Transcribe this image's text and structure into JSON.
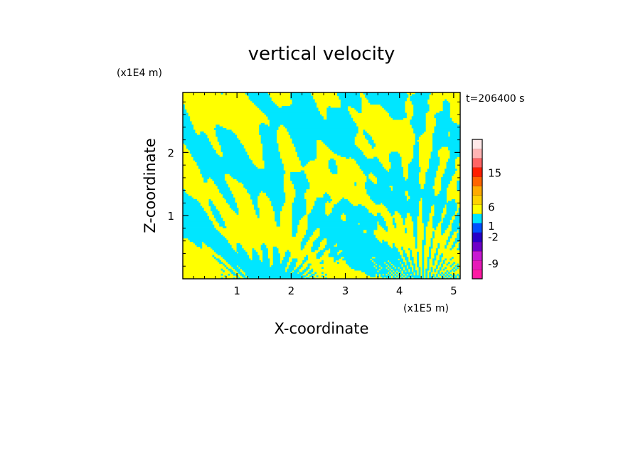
{
  "chart_data": {
    "type": "heatmap",
    "title": "vertical velocity",
    "xlabel": "X-coordinate",
    "ylabel": "Z-coordinate",
    "x_unit": "(x1E5 m)",
    "y_unit": "(x1E4 m)",
    "time_label": "t=206400  s",
    "xlim": [
      0,
      5.12
    ],
    "ylim": [
      0,
      2.95
    ],
    "x_ticks": [
      "1",
      "2",
      "3",
      "4",
      "5"
    ],
    "x_tick_values": [
      1,
      2,
      3,
      4,
      5
    ],
    "y_ticks": [
      "1",
      "2"
    ],
    "y_tick_values": [
      1,
      2
    ],
    "field_colors": {
      "positive": "#ffff00",
      "negative": "#00e6ff"
    },
    "colorbar": {
      "levels": [
        {
          "color": "#ff1aa3"
        },
        {
          "color": "#e61ab8"
        },
        {
          "color": "#c81ad2"
        },
        {
          "color": "#6e00c8"
        },
        {
          "color": "#2800c8"
        },
        {
          "color": "#0050ff"
        },
        {
          "color": "#00e6ff"
        },
        {
          "color": "#ffff00"
        },
        {
          "color": "#ffd200"
        },
        {
          "color": "#ffaa00"
        },
        {
          "color": "#ff6400"
        },
        {
          "color": "#ff1e00"
        },
        {
          "color": "#ff6464"
        },
        {
          "color": "#ffb4b4"
        },
        {
          "color": "#ffe8e8"
        }
      ],
      "labels": [
        "-9",
        "-2",
        "1",
        "6",
        "15"
      ],
      "label_values": [
        -9,
        -2,
        1,
        6,
        15
      ],
      "vmin": -13,
      "vmax": 24
    }
  }
}
